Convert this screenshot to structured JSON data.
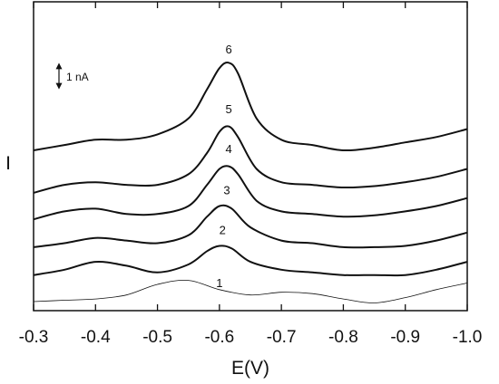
{
  "chart_data": {
    "type": "line",
    "xlabel": "E(V)",
    "ylabel": "I",
    "xlim": [
      -0.3,
      -1.0
    ],
    "x_ticks": [
      {
        "value": -0.3,
        "label": "-0.3"
      },
      {
        "value": -0.4,
        "label": "-0.4"
      },
      {
        "value": -0.5,
        "label": "-0.5"
      },
      {
        "value": -0.6,
        "label": "-0.6"
      },
      {
        "value": -0.7,
        "label": "-0.7"
      },
      {
        "value": -0.8,
        "label": "-0.8"
      },
      {
        "value": -0.9,
        "label": "-0.9"
      },
      {
        "value": -1.0,
        "label": "-1.0"
      }
    ],
    "ylim": [
      0,
      10
    ],
    "grid": false,
    "scale_bar": {
      "label": "1 nA",
      "value": 1
    },
    "series": [
      {
        "name": "1",
        "label_at": [
          -0.6,
          0.55
        ],
        "stroke_width": 0.8,
        "points": [
          [
            -0.3,
            0.0
          ],
          [
            -0.35,
            0.05
          ],
          [
            -0.4,
            0.1
          ],
          [
            -0.45,
            0.25
          ],
          [
            -0.5,
            0.65
          ],
          [
            -0.55,
            0.8
          ],
          [
            -0.6,
            0.45
          ],
          [
            -0.65,
            0.25
          ],
          [
            -0.7,
            0.35
          ],
          [
            -0.75,
            0.3
          ],
          [
            -0.8,
            0.1
          ],
          [
            -0.85,
            -0.05
          ],
          [
            -0.9,
            0.15
          ],
          [
            -0.95,
            0.45
          ],
          [
            -1.0,
            0.7
          ]
        ]
      },
      {
        "name": "2",
        "label_at": [
          -0.605,
          2.55
        ],
        "stroke_width": 2,
        "points": [
          [
            -0.3,
            1.0
          ],
          [
            -0.35,
            1.2
          ],
          [
            -0.4,
            1.5
          ],
          [
            -0.45,
            1.35
          ],
          [
            -0.5,
            1.1
          ],
          [
            -0.55,
            1.4
          ],
          [
            -0.58,
            1.9
          ],
          [
            -0.6,
            2.1
          ],
          [
            -0.62,
            2.0
          ],
          [
            -0.65,
            1.5
          ],
          [
            -0.7,
            1.2
          ],
          [
            -0.75,
            1.1
          ],
          [
            -0.8,
            1.0
          ],
          [
            -0.85,
            1.0
          ],
          [
            -0.9,
            1.0
          ],
          [
            -0.95,
            1.2
          ],
          [
            -1.0,
            1.5
          ]
        ]
      },
      {
        "name": "3",
        "label_at": [
          -0.612,
          4.05
        ],
        "stroke_width": 2,
        "points": [
          [
            -0.3,
            2.05
          ],
          [
            -0.35,
            2.2
          ],
          [
            -0.4,
            2.4
          ],
          [
            -0.45,
            2.3
          ],
          [
            -0.5,
            2.2
          ],
          [
            -0.55,
            2.5
          ],
          [
            -0.58,
            3.2
          ],
          [
            -0.6,
            3.6
          ],
          [
            -0.62,
            3.5
          ],
          [
            -0.65,
            2.8
          ],
          [
            -0.7,
            2.3
          ],
          [
            -0.75,
            2.2
          ],
          [
            -0.8,
            2.05
          ],
          [
            -0.85,
            2.05
          ],
          [
            -0.9,
            2.1
          ],
          [
            -0.95,
            2.3
          ],
          [
            -1.0,
            2.6
          ]
        ]
      },
      {
        "name": "4",
        "label_at": [
          -0.615,
          5.6
        ],
        "stroke_width": 2,
        "points": [
          [
            -0.3,
            3.1
          ],
          [
            -0.35,
            3.4
          ],
          [
            -0.4,
            3.5
          ],
          [
            -0.45,
            3.3
          ],
          [
            -0.5,
            3.3
          ],
          [
            -0.55,
            3.6
          ],
          [
            -0.58,
            4.4
          ],
          [
            -0.6,
            5.0
          ],
          [
            -0.615,
            5.1
          ],
          [
            -0.63,
            4.8
          ],
          [
            -0.66,
            3.8
          ],
          [
            -0.7,
            3.4
          ],
          [
            -0.75,
            3.3
          ],
          [
            -0.8,
            3.2
          ],
          [
            -0.85,
            3.25
          ],
          [
            -0.9,
            3.4
          ],
          [
            -0.95,
            3.6
          ],
          [
            -1.0,
            3.9
          ]
        ]
      },
      {
        "name": "5",
        "label_at": [
          -0.615,
          7.1
        ],
        "stroke_width": 2,
        "points": [
          [
            -0.3,
            4.1
          ],
          [
            -0.35,
            4.4
          ],
          [
            -0.4,
            4.5
          ],
          [
            -0.45,
            4.4
          ],
          [
            -0.5,
            4.4
          ],
          [
            -0.55,
            4.8
          ],
          [
            -0.58,
            5.6
          ],
          [
            -0.6,
            6.4
          ],
          [
            -0.615,
            6.6
          ],
          [
            -0.63,
            6.2
          ],
          [
            -0.66,
            5.0
          ],
          [
            -0.7,
            4.5
          ],
          [
            -0.75,
            4.4
          ],
          [
            -0.8,
            4.3
          ],
          [
            -0.85,
            4.35
          ],
          [
            -0.9,
            4.5
          ],
          [
            -0.95,
            4.7
          ],
          [
            -1.0,
            5.0
          ]
        ]
      },
      {
        "name": "6",
        "label_at": [
          -0.615,
          9.35
        ],
        "stroke_width": 2,
        "points": [
          [
            -0.3,
            5.7
          ],
          [
            -0.35,
            5.9
          ],
          [
            -0.4,
            6.1
          ],
          [
            -0.45,
            6.1
          ],
          [
            -0.5,
            6.3
          ],
          [
            -0.55,
            6.9
          ],
          [
            -0.58,
            8.0
          ],
          [
            -0.6,
            8.8
          ],
          [
            -0.615,
            9.0
          ],
          [
            -0.63,
            8.6
          ],
          [
            -0.66,
            6.9
          ],
          [
            -0.7,
            6.1
          ],
          [
            -0.75,
            5.9
          ],
          [
            -0.8,
            5.7
          ],
          [
            -0.85,
            5.8
          ],
          [
            -0.9,
            6.0
          ],
          [
            -0.95,
            6.2
          ],
          [
            -1.0,
            6.5
          ]
        ]
      }
    ]
  }
}
